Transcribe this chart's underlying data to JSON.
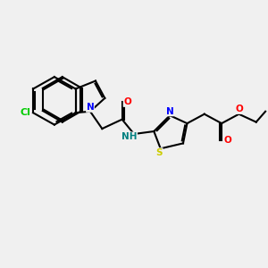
{
  "bg_color": "#f0f0f0",
  "bond_color": "#000000",
  "bond_width": 1.5,
  "atom_colors": {
    "N": "#0000ff",
    "O": "#ff0000",
    "S": "#cccc00",
    "Cl": "#00cc00",
    "H": "#008080",
    "C": "#000000"
  },
  "font_size": 7.5
}
